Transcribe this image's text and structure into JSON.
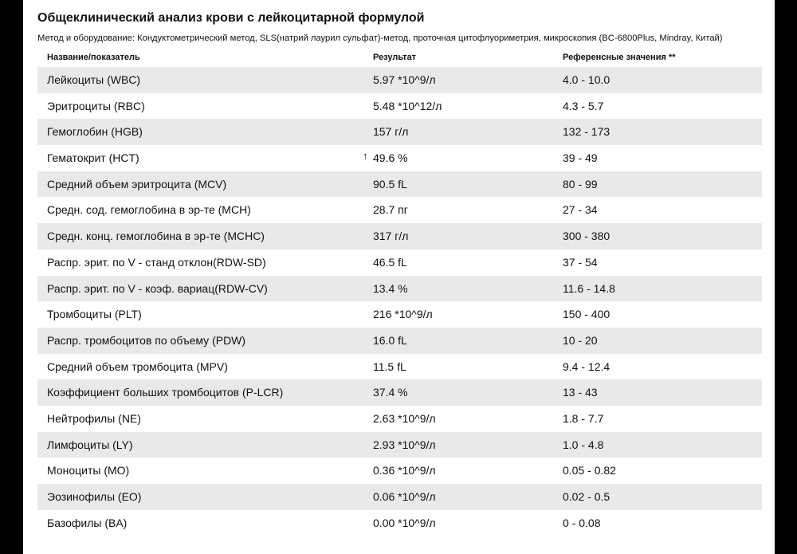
{
  "header": {
    "title": "Общеклинический анализ крови с лейкоцитарной формулой",
    "subtitle": "Метод и оборудование: Кондуктометрический метод, SLS(натрий лаурил сульфат)-метод, проточная цитофлуориметрия, микроскопия (BC-6800Plus, Mindray, Китай)"
  },
  "table": {
    "columns": {
      "name": "Название/показатель",
      "result": "Результат",
      "reference": "Референсные значения **"
    },
    "rows": [
      {
        "name": "Лейкоциты (WBC)",
        "result": "5.97 *10^9/л",
        "reference": "4.0 - 10.0",
        "flag": ""
      },
      {
        "name": "Эритроциты (RBC)",
        "result": "5.48 *10^12/л",
        "reference": "4.3 - 5.7",
        "flag": ""
      },
      {
        "name": "Гемоглобин (HGB)",
        "result": "157 г/л",
        "reference": "132 - 173",
        "flag": ""
      },
      {
        "name": "Гематокрит (HCT)",
        "result": "49.6 %",
        "reference": "39 - 49",
        "flag": "↑"
      },
      {
        "name": "Средний объем эритроцита (MCV)",
        "result": "90.5 fL",
        "reference": "80 - 99",
        "flag": ""
      },
      {
        "name": "Средн. сод. гемоглобина в эр-те (MCH)",
        "result": "28.7 пг",
        "reference": "27 - 34",
        "flag": ""
      },
      {
        "name": "Средн. конц. гемоглобина в эр-те (MCHC)",
        "result": "317 г/л",
        "reference": "300 - 380",
        "flag": ""
      },
      {
        "name": "Распр. эрит. по V - станд отклон(RDW-SD)",
        "result": "46.5 fL",
        "reference": "37 - 54",
        "flag": ""
      },
      {
        "name": "Распр. эрит. по V - коэф. вариац(RDW-CV)",
        "result": "13.4 %",
        "reference": "11.6 - 14.8",
        "flag": ""
      },
      {
        "name": "Тромбоциты (PLT)",
        "result": "216 *10^9/л",
        "reference": "150 - 400",
        "flag": ""
      },
      {
        "name": "Распр. тромбоцитов по объему (PDW)",
        "result": "16.0 fL",
        "reference": "10 - 20",
        "flag": ""
      },
      {
        "name": "Средний объем тромбоцита (MPV)",
        "result": "11.5 fL",
        "reference": "9.4 - 12.4",
        "flag": ""
      },
      {
        "name": "Коэффициент больших тромбоцитов (P-LCR)",
        "result": "37.4 %",
        "reference": "13 - 43",
        "flag": ""
      },
      {
        "name": "Нейтрофилы (NE)",
        "result": "2.63 *10^9/л",
        "reference": "1.8 - 7.7",
        "flag": ""
      },
      {
        "name": "Лимфоциты (LY)",
        "result": "2.93 *10^9/л",
        "reference": "1.0 - 4.8",
        "flag": ""
      },
      {
        "name": "Моноциты (MO)",
        "result": "0.36 *10^9/л",
        "reference": "0.05 - 0.82",
        "flag": ""
      },
      {
        "name": "Эозинофилы (EO)",
        "result": "0.06 *10^9/л",
        "reference": "0.02 - 0.5",
        "flag": ""
      },
      {
        "name": "Базофилы (BA)",
        "result": "0.00 *10^9/л",
        "reference": "0 - 0.08",
        "flag": ""
      }
    ]
  }
}
